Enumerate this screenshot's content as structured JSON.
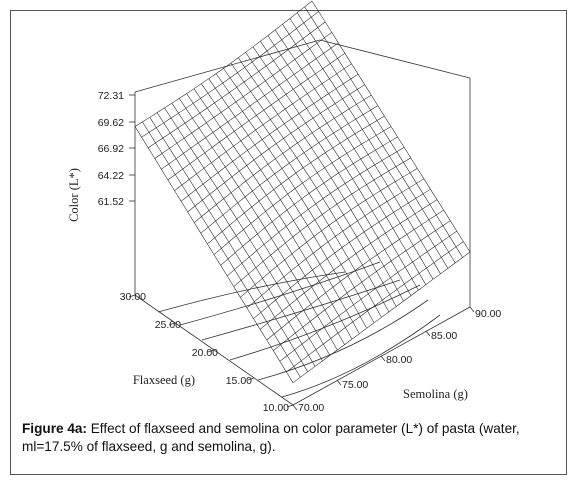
{
  "chart_data": {
    "type": "surface",
    "zlabel": "Color (L*)",
    "xlabel": "Semolina (g)",
    "ylabel": "Flaxseed (g)",
    "ztick_labels": [
      "72.31",
      "69.62",
      "66.92",
      "64.22",
      "61.52"
    ],
    "xtick_labels": [
      "70.00",
      "75.00",
      "80.00",
      "85.00",
      "90.00"
    ],
    "ytick_labels": [
      "10.00",
      "15.00",
      "20.00",
      "25.00",
      "30.00"
    ],
    "x_range": [
      70,
      90
    ],
    "y_range": [
      10,
      30
    ],
    "zlim": [
      58.82,
      72.31
    ],
    "corner_values": {
      "semolina70_flaxseed30": 70.2,
      "semolina90_flaxseed30": 72.31,
      "semolina70_flaxseed10": 59.0,
      "semolina90_flaxseed10": 61.5
    },
    "contours": 6
  },
  "caption": {
    "label": "Figure 4a:",
    "text": " Effect of flaxseed and semolina on color parameter (L*) of pasta (water, ml=17.5% of flaxseed, g and semolina, g)."
  }
}
